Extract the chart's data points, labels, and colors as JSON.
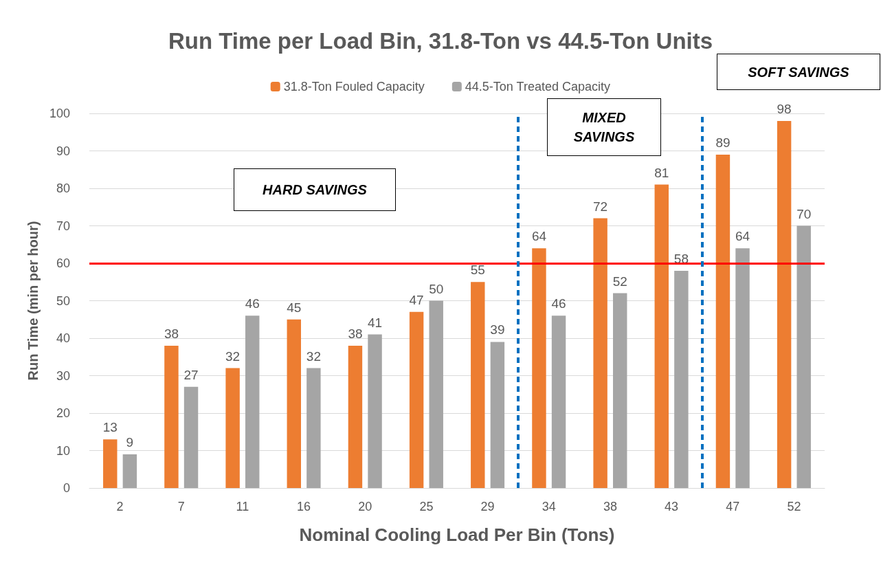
{
  "chart_data": {
    "type": "bar",
    "title": "Run Time per Load Bin, 31.8-Ton vs 44.5-Ton Units",
    "xlabel": "Nominal Cooling Load Per Bin (Tons)",
    "ylabel": "Run Time (min per hour)",
    "categories": [
      "2",
      "7",
      "11",
      "16",
      "20",
      "25",
      "29",
      "34",
      "38",
      "43",
      "47",
      "52"
    ],
    "series": [
      {
        "name": "31.8-Ton Fouled Capacity",
        "color": "#ed7d31",
        "values": [
          13,
          38,
          32,
          45,
          38,
          47,
          55,
          64,
          72,
          81,
          89,
          98
        ]
      },
      {
        "name": "44.5-Ton Treated Capacity",
        "color": "#a5a5a5",
        "values": [
          9,
          27,
          46,
          32,
          41,
          50,
          39,
          46,
          52,
          58,
          64,
          70
        ]
      }
    ],
    "ylim": [
      0,
      100
    ],
    "yticks": [
      0,
      10,
      20,
      30,
      40,
      50,
      60,
      70,
      80,
      90,
      100
    ],
    "ref_lines": [
      {
        "axis": "y",
        "value": 60,
        "color": "#ff0000",
        "line_style": "solid"
      }
    ],
    "annotations": [
      "HARD SAVINGS",
      "MIXED SAVINGS",
      "SOFT SAVINGS"
    ],
    "data_labels": true,
    "grid": "y",
    "legend": "top"
  }
}
